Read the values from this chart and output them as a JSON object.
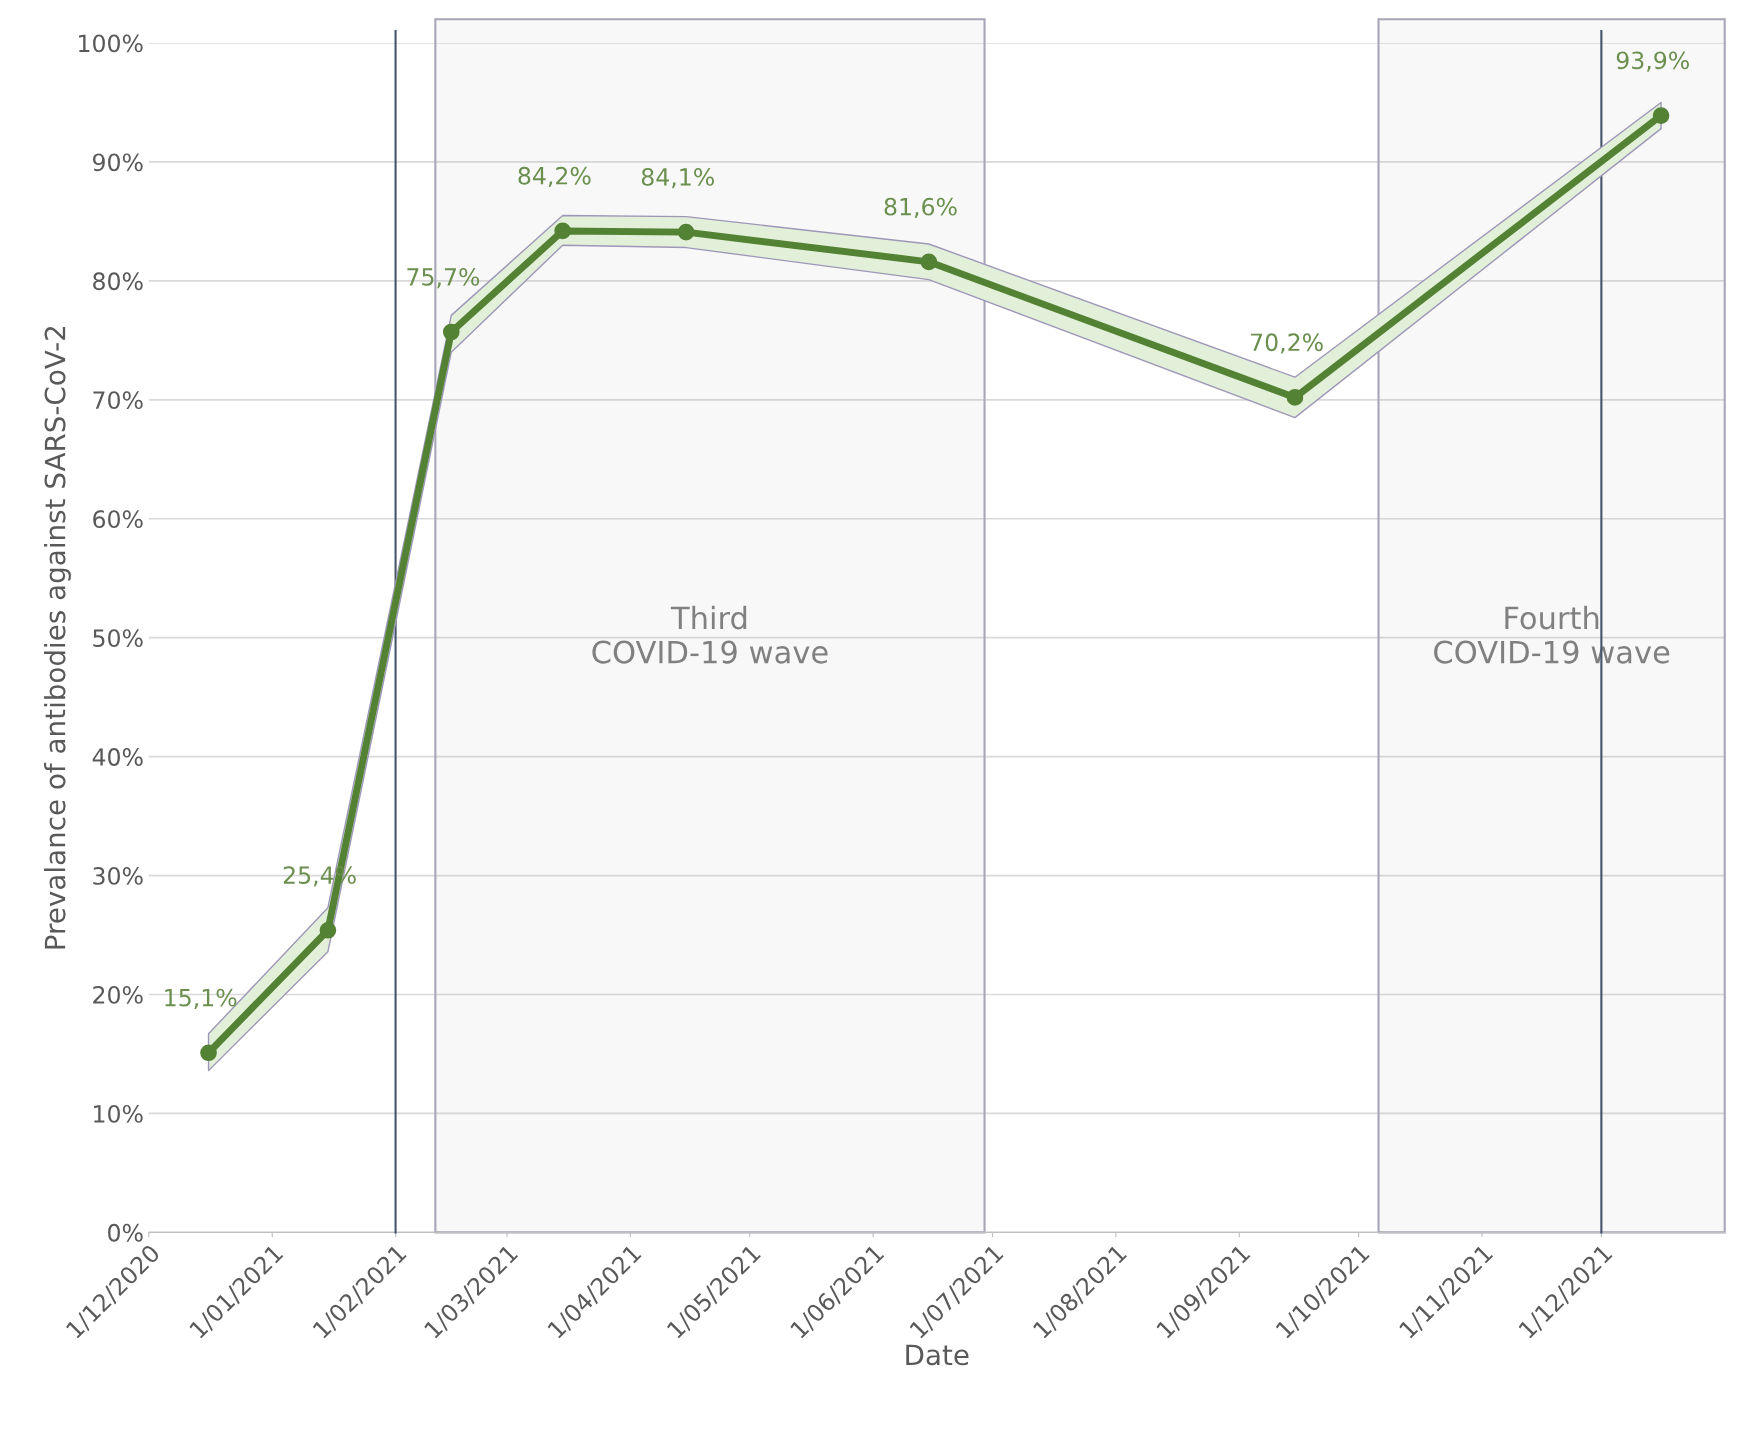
{
  "chart_data": {
    "type": "line",
    "xlabel": "Date",
    "ylabel": "Prevalance of antibodies against SARS-CoV-2",
    "x": [
      "2020-12-16",
      "2021-01-15",
      "2021-02-15",
      "2021-03-15",
      "2021-04-15",
      "2021-06-15",
      "2021-09-15",
      "2021-12-16"
    ],
    "series": [
      {
        "color": "#548235",
        "values": [
          15.1,
          25.4,
          75.7,
          84.2,
          84.1,
          81.6,
          70.2,
          93.9
        ],
        "lower": [
          13.6,
          23.6,
          74.0,
          83.0,
          82.8,
          80.1,
          68.5,
          92.8
        ],
        "upper": [
          16.7,
          27.3,
          77.1,
          85.5,
          85.4,
          83.1,
          71.9,
          95.0
        ],
        "value_labels": [
          "15,1%",
          "25,4%",
          "75,7%",
          "84,2%",
          "84,1%",
          "81,6%",
          "70,2%",
          "93,9%"
        ]
      }
    ],
    "xlim": [
      "2020-12-01",
      "2022-01-01"
    ],
    "xticks": [
      {
        "value": "2020-12-01",
        "label": "1/12/2020"
      },
      {
        "value": "2021-01-01",
        "label": "1/01/2021"
      },
      {
        "value": "2021-02-01",
        "label": "1/02/2021"
      },
      {
        "value": "2021-03-01",
        "label": "1/03/2021"
      },
      {
        "value": "2021-04-01",
        "label": "1/04/2021"
      },
      {
        "value": "2021-05-01",
        "label": "1/05/2021"
      },
      {
        "value": "2021-06-01",
        "label": "1/06/2021"
      },
      {
        "value": "2021-07-01",
        "label": "1/07/2021"
      },
      {
        "value": "2021-08-01",
        "label": "1/08/2021"
      },
      {
        "value": "2021-09-01",
        "label": "1/09/2021"
      },
      {
        "value": "2021-10-01",
        "label": "1/10/2021"
      },
      {
        "value": "2021-11-01",
        "label": "1/11/2021"
      },
      {
        "value": "2021-12-01",
        "label": "1/12/2021"
      }
    ],
    "ylim": [
      0,
      100
    ],
    "yticks": [
      {
        "value": 0,
        "label": "0%"
      },
      {
        "value": 10,
        "label": "10%"
      },
      {
        "value": 20,
        "label": "20%"
      },
      {
        "value": 30,
        "label": "30%"
      },
      {
        "value": 40,
        "label": "40%"
      },
      {
        "value": 50,
        "label": "50%"
      },
      {
        "value": 60,
        "label": "60%"
      },
      {
        "value": 70,
        "label": "70%"
      },
      {
        "value": 80,
        "label": "80%"
      },
      {
        "value": 90,
        "label": "90%"
      },
      {
        "value": 100,
        "label": "100%"
      }
    ],
    "ref_lines": [
      {
        "axis": "x",
        "value": "2021-02-01",
        "color": "#44546a"
      },
      {
        "axis": "x",
        "value": "2021-12-01",
        "color": "#44546a"
      }
    ],
    "bands": [
      {
        "axis": "x",
        "from": "2021-02-11",
        "to": "2021-06-29",
        "label": "Third\nCOVID-19 wave",
        "color": "#a6a6b8"
      },
      {
        "axis": "x",
        "from": "2021-10-06",
        "to": "2022-01-01",
        "label": "Fourth\nCOVID-19 wave",
        "color": "#a6a6b8"
      }
    ],
    "grid": "y",
    "marker": "circle",
    "line_style": "solid"
  }
}
